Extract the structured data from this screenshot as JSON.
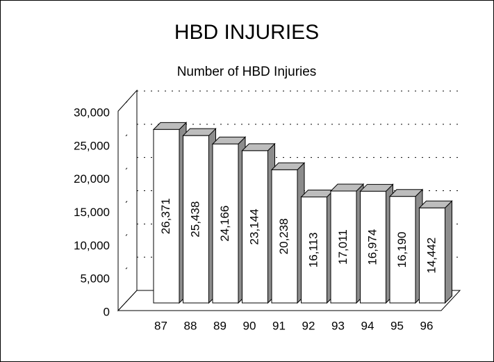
{
  "chart_data": {
    "type": "bar",
    "title": "HBD INJURIES",
    "subtitle": "Number of HBD Injuries",
    "categories": [
      "87",
      "88",
      "89",
      "90",
      "91",
      "92",
      "93",
      "94",
      "95",
      "96"
    ],
    "values": [
      26371,
      25438,
      24166,
      23144,
      20238,
      16113,
      17011,
      16974,
      16190,
      14442
    ],
    "value_labels": [
      "26,371",
      "25,438",
      "24,166",
      "23,144",
      "20,238",
      "16,113",
      "17,011",
      "16,974",
      "16,190",
      "14,442"
    ],
    "color": "#ffffff",
    "ylim": [
      0,
      30000
    ],
    "yticks": [
      0,
      {
        "value": 5000,
        "label": "5,000"
      },
      {
        "value": 10000,
        "label": "10,000"
      },
      {
        "value": 15000,
        "label": "15,000"
      },
      {
        "value": 20000,
        "label": "20,000"
      },
      {
        "value": 25000,
        "label": "25,000"
      },
      {
        "value": 30000,
        "label": "30,000"
      }
    ],
    "grid": true
  }
}
